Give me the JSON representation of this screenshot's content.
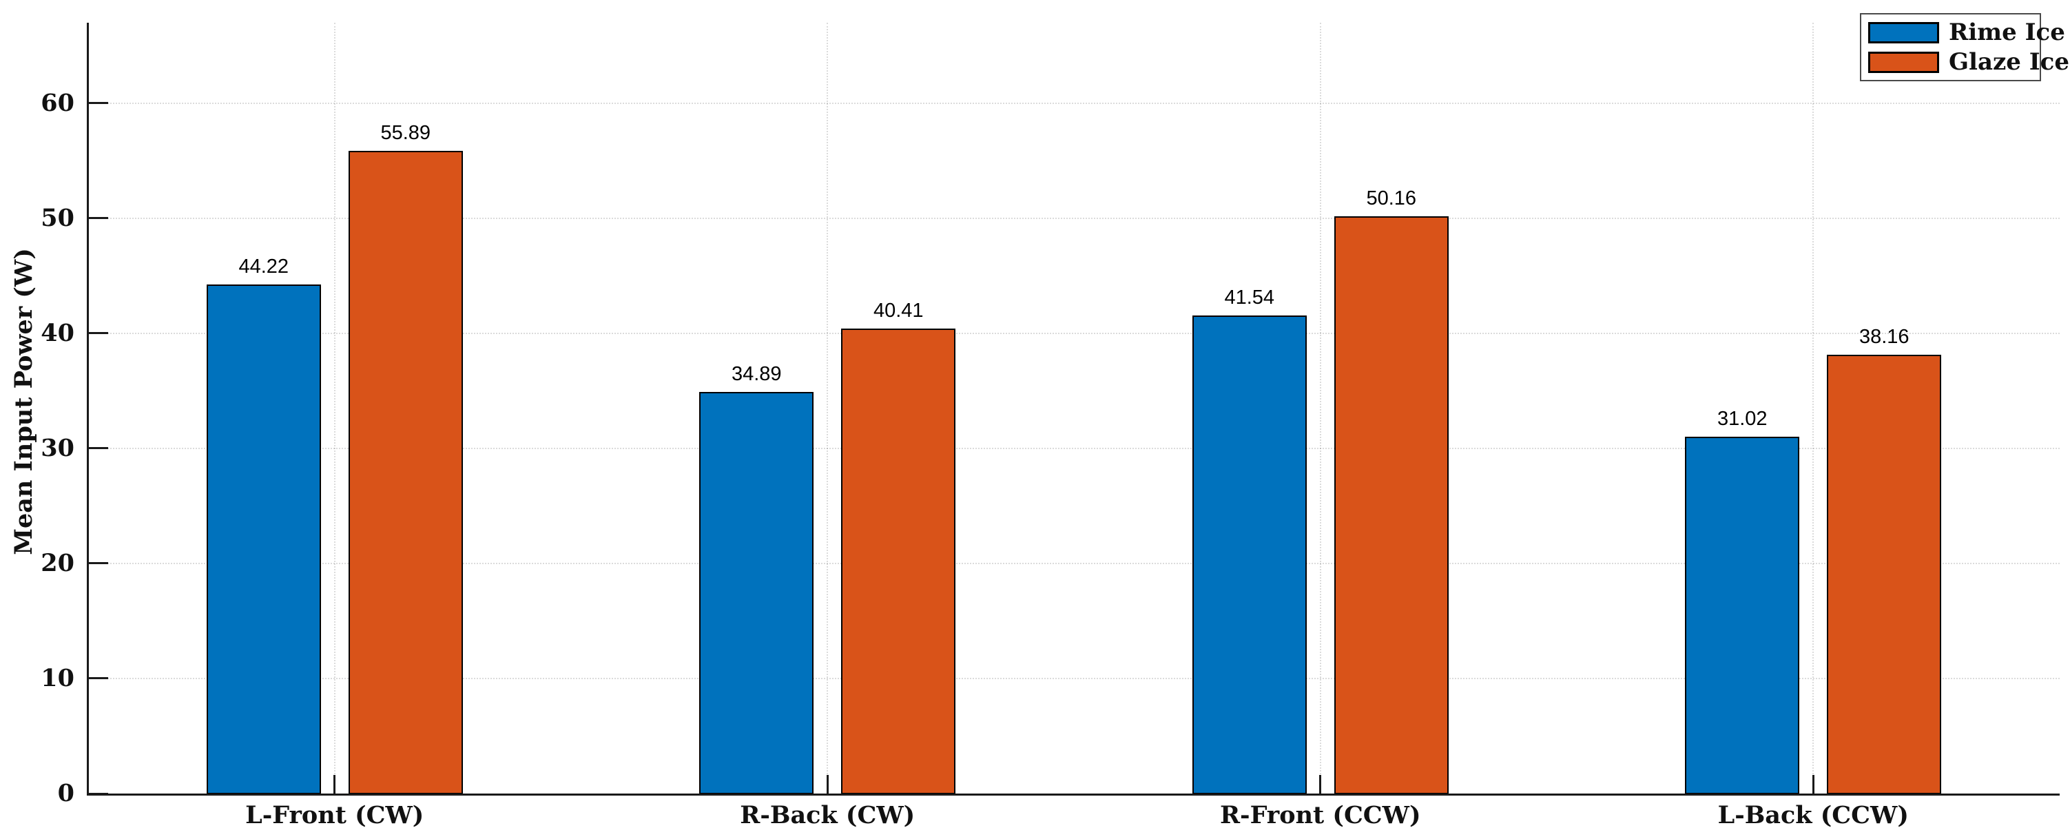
{
  "chart_data": {
    "type": "bar",
    "title": "",
    "xlabel": "",
    "ylabel": "Mean Input Power (W)",
    "categories": [
      "L-Front (CW)",
      "R-Back (CW)",
      "R-Front (CCW)",
      "L-Back (CCW)"
    ],
    "series": [
      {
        "name": "Rime Ice",
        "color": "#0072BD",
        "values": [
          44.22,
          34.89,
          41.54,
          31.02
        ]
      },
      {
        "name": "Glaze Ice",
        "color": "#D95319",
        "values": [
          55.89,
          40.41,
          50.16,
          38.16
        ]
      }
    ],
    "ylim": [
      0,
      67
    ],
    "yticks": [
      0,
      10,
      20,
      30,
      40,
      50,
      60
    ],
    "grid": "on",
    "gridline_style": "dotted",
    "legend_position": "top-right",
    "bar_edge_color": "#000000",
    "axis_color": "#1a1a1a",
    "value_labels_visible": true
  }
}
